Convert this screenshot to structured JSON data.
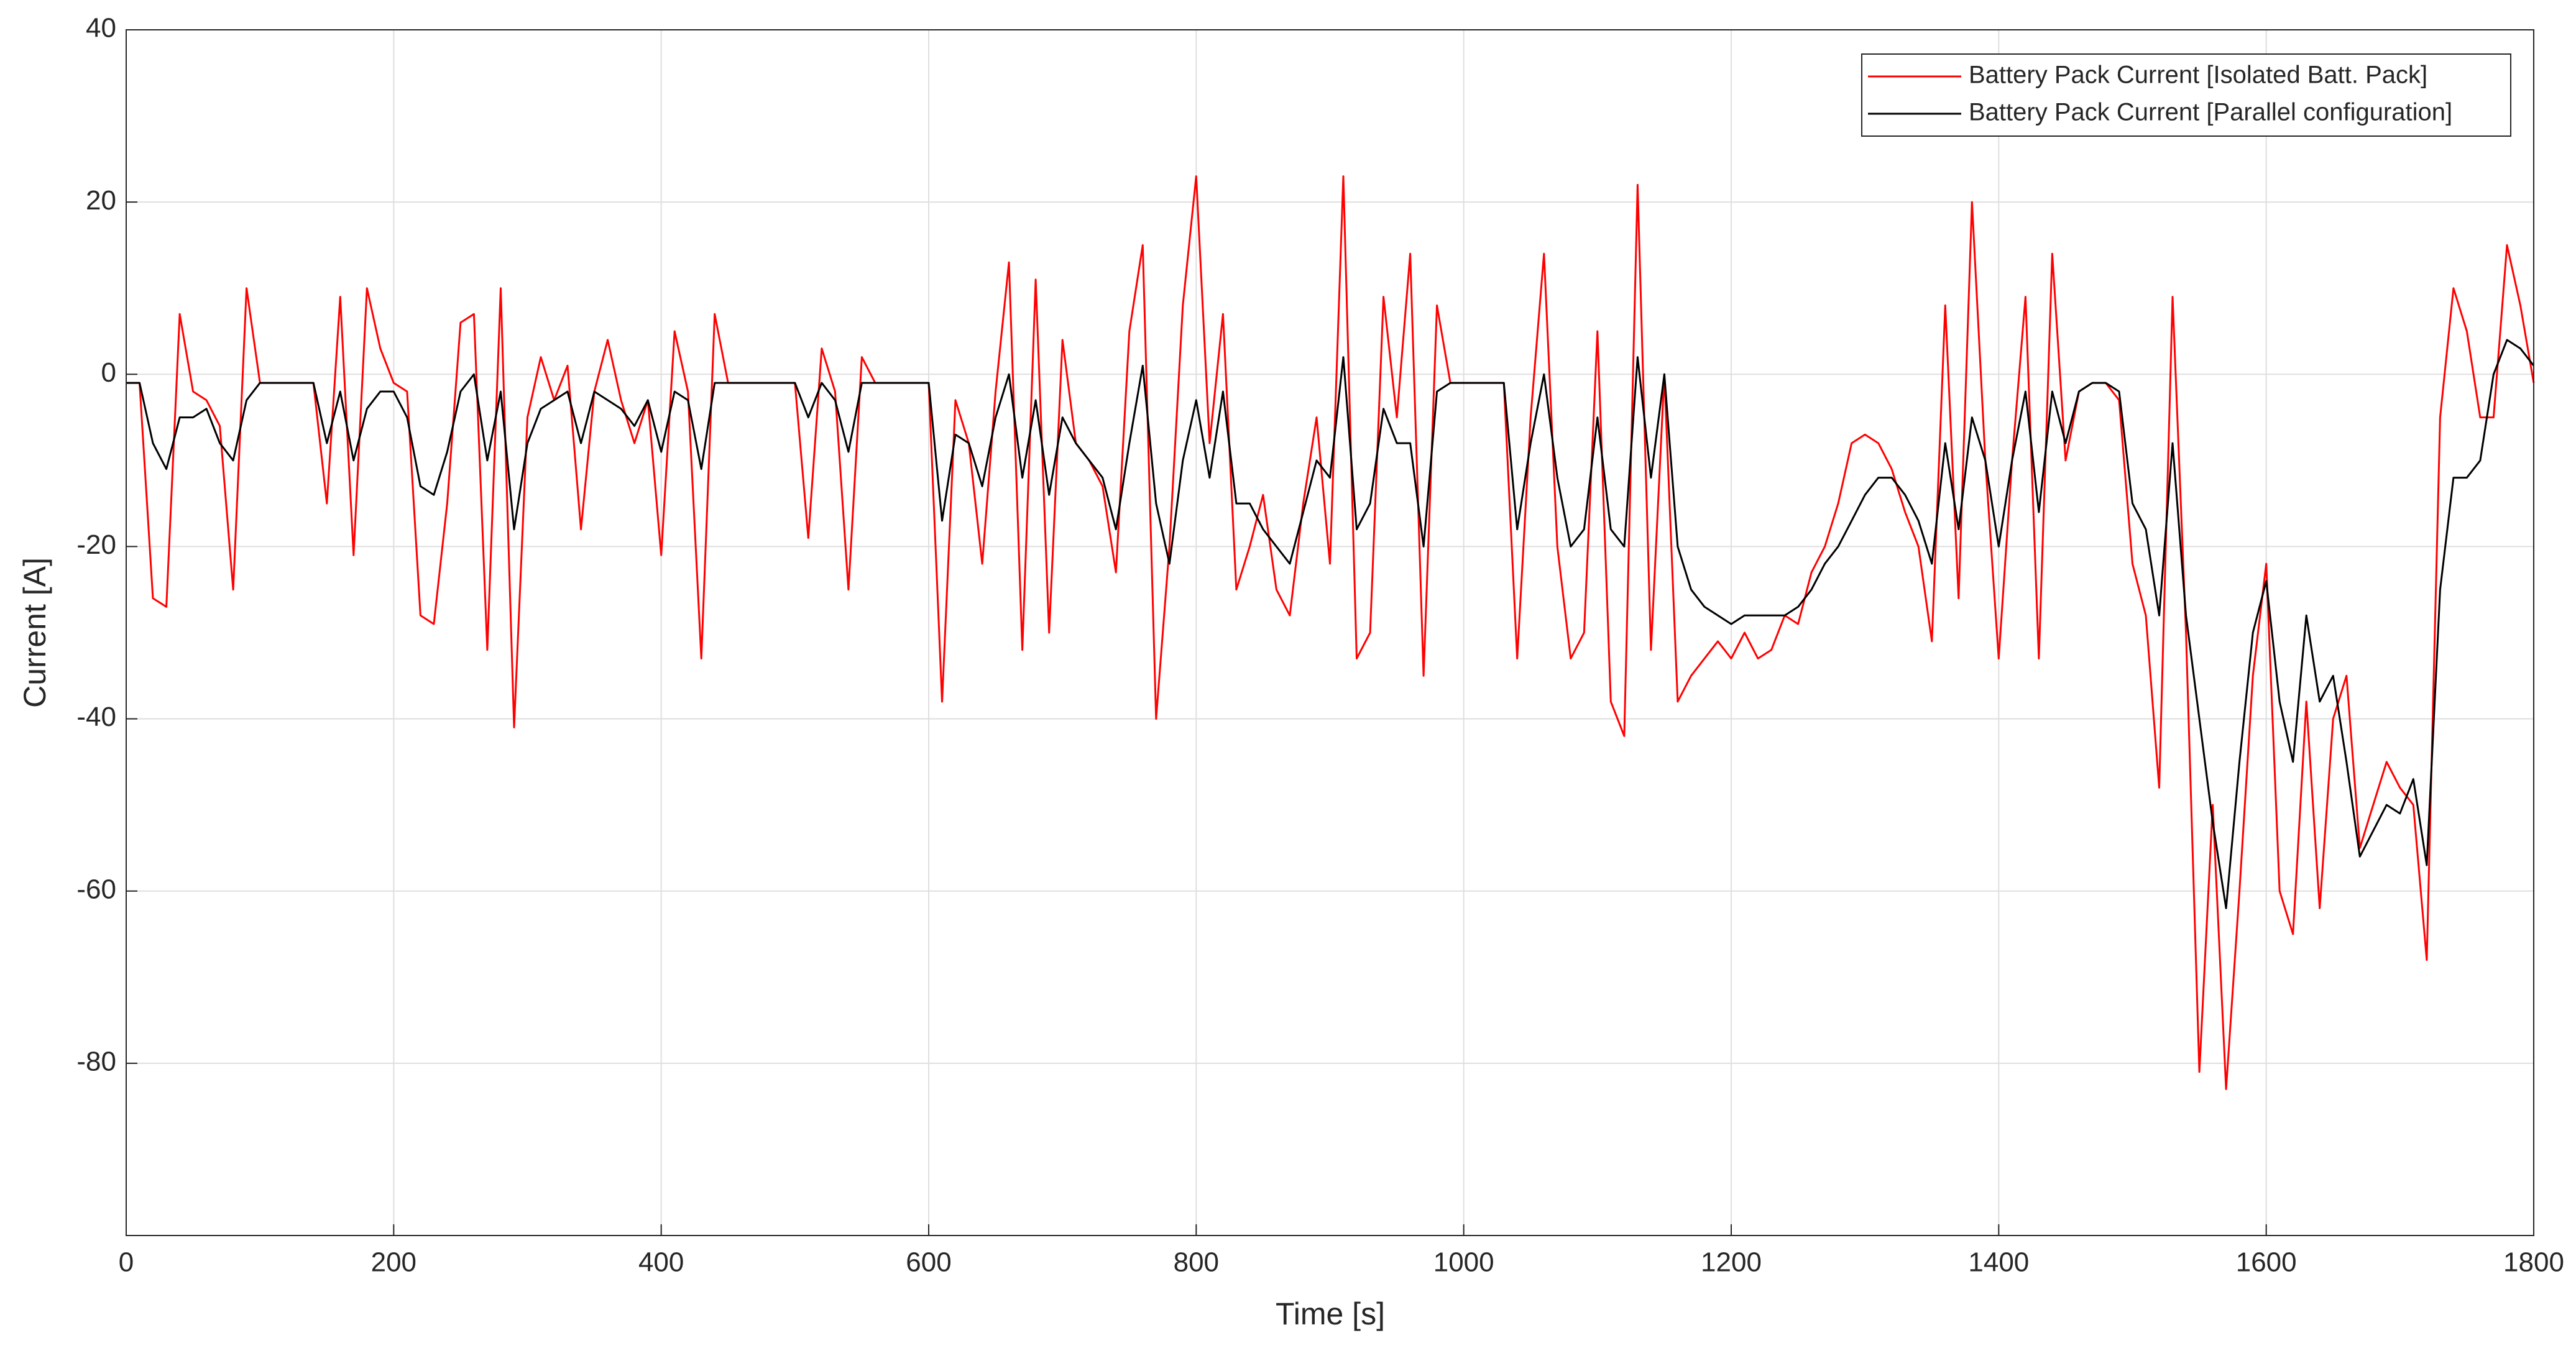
{
  "chart_data": {
    "type": "line",
    "xlabel": "Time [s]",
    "ylabel": "Current [A]",
    "xlim": [
      0,
      1800
    ],
    "xticks": [
      0,
      200,
      400,
      600,
      800,
      1000,
      1200,
      1400,
      1600,
      1800
    ],
    "ylim": [
      -100,
      40
    ],
    "yticks": [
      -80,
      -60,
      -40,
      -20,
      0,
      20,
      40
    ],
    "grid": true,
    "legend_position": "upper right",
    "x": [
      0,
      10,
      20,
      30,
      40,
      50,
      60,
      70,
      80,
      90,
      100,
      110,
      120,
      130,
      140,
      150,
      160,
      170,
      180,
      190,
      200,
      210,
      220,
      230,
      240,
      250,
      260,
      270,
      280,
      290,
      300,
      310,
      320,
      330,
      340,
      350,
      360,
      370,
      380,
      390,
      400,
      410,
      420,
      430,
      440,
      450,
      460,
      470,
      480,
      490,
      500,
      510,
      520,
      530,
      540,
      550,
      560,
      570,
      580,
      590,
      600,
      610,
      620,
      630,
      640,
      650,
      660,
      670,
      680,
      690,
      700,
      710,
      720,
      730,
      740,
      750,
      760,
      770,
      780,
      790,
      800,
      810,
      820,
      830,
      840,
      850,
      860,
      870,
      880,
      890,
      900,
      910,
      920,
      930,
      940,
      950,
      960,
      970,
      980,
      990,
      1000,
      1010,
      1020,
      1030,
      1040,
      1050,
      1060,
      1070,
      1080,
      1090,
      1100,
      1110,
      1120,
      1130,
      1140,
      1150,
      1160,
      1170,
      1180,
      1190,
      1200,
      1210,
      1220,
      1230,
      1240,
      1250,
      1260,
      1270,
      1280,
      1290,
      1300,
      1310,
      1320,
      1330,
      1340,
      1350,
      1360,
      1370,
      1380,
      1390,
      1400,
      1410,
      1420,
      1430,
      1440,
      1450,
      1460,
      1470,
      1480,
      1490,
      1500,
      1510,
      1520,
      1530,
      1540,
      1550,
      1560,
      1570,
      1580,
      1590,
      1600,
      1610,
      1620,
      1630,
      1640,
      1650,
      1660,
      1670,
      1680,
      1690,
      1700,
      1710,
      1720,
      1730,
      1740,
      1750,
      1760,
      1770,
      1780,
      1790,
      1800
    ],
    "series": [
      {
        "name": "Battery Pack Current [Isolated Batt. Pack]",
        "color": "#ff0000",
        "values": [
          -1,
          -1,
          -26,
          -27,
          7,
          -2,
          -3,
          -6,
          -25,
          10,
          -1,
          -1,
          -1,
          -1,
          -1,
          -15,
          9,
          -21,
          10,
          3,
          -1,
          -2,
          -28,
          -29,
          -15,
          6,
          7,
          -32,
          10,
          -41,
          -5,
          2,
          -3,
          1,
          -18,
          -2,
          4,
          -3,
          -8,
          -3,
          -21,
          5,
          -2,
          -33,
          7,
          -1,
          -1,
          -1,
          -1,
          -1,
          -1,
          -19,
          3,
          -2,
          -25,
          2,
          -1,
          -1,
          -1,
          -1,
          -1,
          -38,
          -3,
          -8,
          -22,
          -2,
          13,
          -32,
          11,
          -30,
          4,
          -8,
          -10,
          -13,
          -23,
          5,
          15,
          -40,
          -20,
          8,
          23,
          -8,
          7,
          -25,
          -20,
          -14,
          -25,
          -28,
          -15,
          -5,
          -22,
          23,
          -33,
          -30,
          9,
          -5,
          14,
          -35,
          8,
          -1,
          -1,
          -1,
          -1,
          -1,
          -33,
          -5,
          14,
          -20,
          -33,
          -30,
          5,
          -38,
          -42,
          22,
          -32,
          0,
          -38,
          -35,
          -33,
          -31,
          -33,
          -30,
          -33,
          -32,
          -28,
          -29,
          -23,
          -20,
          -15,
          -8,
          -7,
          -8,
          -11,
          -16,
          -20,
          -31,
          8,
          -26,
          20,
          -10,
          -33,
          -10,
          9,
          -33,
          14,
          -10,
          -2,
          -1,
          -1,
          -3,
          -22,
          -28,
          -48,
          9,
          -30,
          -81,
          -50,
          -83,
          -60,
          -35,
          -22,
          -60,
          -65,
          -38,
          -62,
          -40,
          -35,
          -55,
          -50,
          -45,
          -48,
          -50,
          -68,
          -5,
          10,
          5,
          -5,
          -5,
          15,
          8,
          -1
        ]
      },
      {
        "name": "Battery Pack Current [Parallel configuration]",
        "color": "#000000",
        "values": [
          -1,
          -1,
          -8,
          -11,
          -5,
          -5,
          -4,
          -8,
          -10,
          -3,
          -1,
          -1,
          -1,
          -1,
          -1,
          -8,
          -2,
          -10,
          -4,
          -2,
          -2,
          -5,
          -13,
          -14,
          -9,
          -2,
          0,
          -10,
          -2,
          -18,
          -8,
          -4,
          -3,
          -2,
          -8,
          -2,
          -3,
          -4,
          -6,
          -3,
          -9,
          -2,
          -3,
          -11,
          -1,
          -1,
          -1,
          -1,
          -1,
          -1,
          -1,
          -5,
          -1,
          -3,
          -9,
          -1,
          -1,
          -1,
          -1,
          -1,
          -1,
          -17,
          -7,
          -8,
          -13,
          -5,
          0,
          -12,
          -3,
          -14,
          -5,
          -8,
          -10,
          -12,
          -18,
          -8,
          1,
          -15,
          -22,
          -10,
          -3,
          -12,
          -2,
          -15,
          -15,
          -18,
          -20,
          -22,
          -16,
          -10,
          -12,
          2,
          -18,
          -15,
          -4,
          -8,
          -8,
          -20,
          -2,
          -1,
          -1,
          -1,
          -1,
          -1,
          -18,
          -8,
          0,
          -12,
          -20,
          -18,
          -5,
          -18,
          -20,
          2,
          -12,
          0,
          -20,
          -25,
          -27,
          -28,
          -29,
          -28,
          -28,
          -28,
          -28,
          -27,
          -25,
          -22,
          -20,
          -17,
          -14,
          -12,
          -12,
          -14,
          -17,
          -22,
          -8,
          -18,
          -5,
          -10,
          -20,
          -10,
          -2,
          -16,
          -2,
          -8,
          -2,
          -1,
          -1,
          -2,
          -15,
          -18,
          -28,
          -8,
          -28,
          -40,
          -52,
          -62,
          -45,
          -30,
          -24,
          -38,
          -45,
          -28,
          -38,
          -35,
          -45,
          -56,
          -53,
          -50,
          -51,
          -47,
          -57,
          -25,
          -12,
          -12,
          -10,
          0,
          4,
          3,
          1
        ]
      }
    ]
  }
}
